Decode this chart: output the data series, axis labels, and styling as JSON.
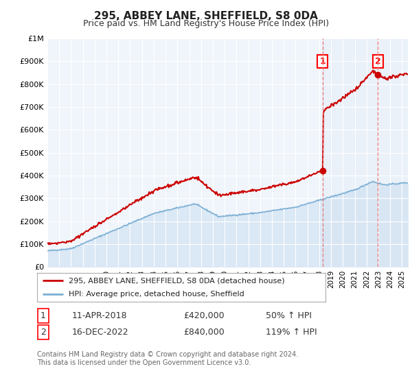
{
  "title": "295, ABBEY LANE, SHEFFIELD, S8 0DA",
  "subtitle": "Price paid vs. HM Land Registry's House Price Index (HPI)",
  "ylim": [
    0,
    1000000
  ],
  "yticks": [
    0,
    100000,
    200000,
    300000,
    400000,
    500000,
    600000,
    700000,
    800000,
    900000,
    1000000
  ],
  "ytick_labels": [
    "£0",
    "£100K",
    "£200K",
    "£300K",
    "£400K",
    "£500K",
    "£600K",
    "£700K",
    "£800K",
    "£900K",
    "£1M"
  ],
  "hpi_line_color": "#7bafd4",
  "hpi_fill_color": "#c8ddf0",
  "price_line_color": "#cc0000",
  "vline_color": "#e88080",
  "shade_color": "#dce8f5",
  "sale1_date_num": 2018.28,
  "sale1_price": 420000,
  "sale1_label": "1",
  "sale2_date_num": 2022.96,
  "sale2_price": 840000,
  "sale2_label": "2",
  "legend_entry1": "295, ABBEY LANE, SHEFFIELD, S8 0DA (detached house)",
  "legend_entry2": "HPI: Average price, detached house, Sheffield",
  "table_row1_num": "1",
  "table_row1_date": "11-APR-2018",
  "table_row1_price": "£420,000",
  "table_row1_hpi": "50% ↑ HPI",
  "table_row2_num": "2",
  "table_row2_date": "16-DEC-2022",
  "table_row2_price": "£840,000",
  "table_row2_hpi": "119% ↑ HPI",
  "footer": "Contains HM Land Registry data © Crown copyright and database right 2024.\nThis data is licensed under the Open Government Licence v3.0.",
  "background_color": "#ffffff",
  "plot_bg_color": "#f0f5fb"
}
